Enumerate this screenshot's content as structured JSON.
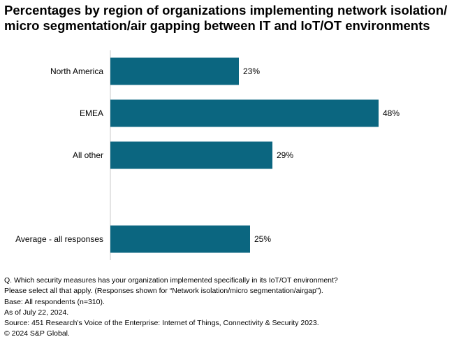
{
  "chart_data": {
    "type": "bar",
    "orientation": "horizontal",
    "title_lines": [
      "Percentages by region of organizations implementing network isolation/",
      "micro segmentation/air gapping between IT and IoT/OT environments"
    ],
    "categories": [
      "North America",
      "EMEA",
      "All other",
      "",
      "Average - all responses"
    ],
    "values": [
      23,
      48,
      29,
      null,
      25
    ],
    "value_labels": [
      "23%",
      "48%",
      "29%",
      "",
      "25%"
    ],
    "xlim": [
      0,
      54
    ],
    "xlabel": "",
    "ylabel": "",
    "grid": false,
    "legend": "none",
    "bar_color": "#0b6680",
    "axis_color": "#c8c8c8"
  },
  "notes": [
    "Q. Which security measures has your organization implemented specifically in its IoT/OT environment?",
    "Please select all that apply. (Responses shown for “Network isolation/micro segmentation/airgap”).",
    "Base: All respondents (n=310).",
    "As of July 22, 2024.",
    "Source: 451 Research's Voice of the Enterprise: Internet of Things, Connectivity & Security 2023.",
    "© 2024 S&P Global."
  ]
}
